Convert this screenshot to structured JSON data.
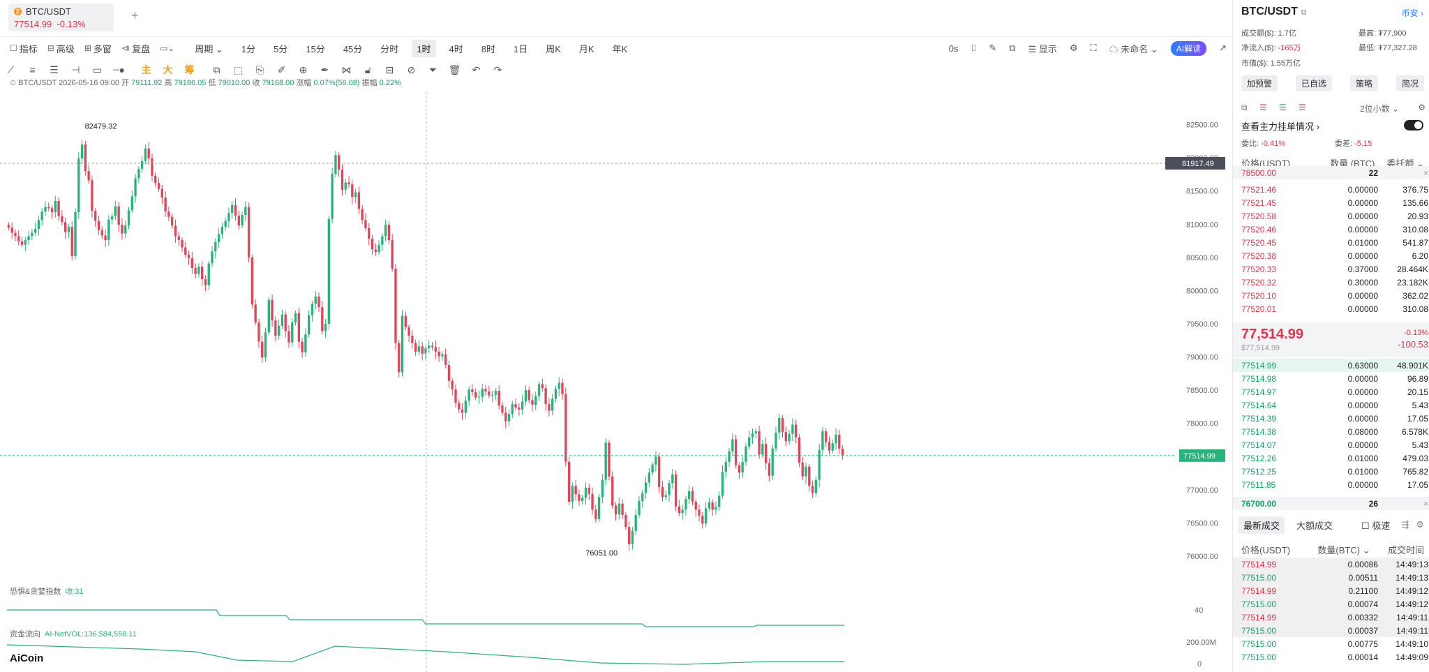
{
  "tab": {
    "symbol": "BTC/USDT",
    "price": "77514.99",
    "change": "-0.13%",
    "add": "+"
  },
  "toolbar": {
    "left": [
      {
        "icon": "indicator-icon",
        "label": "指标"
      },
      {
        "icon": "advanced-icon",
        "label": "高级"
      },
      {
        "icon": "multiwin-icon",
        "label": "多窗"
      },
      {
        "icon": "replay-icon",
        "label": "复盘"
      },
      {
        "icon": "layout-icon",
        "label": ""
      }
    ],
    "period_label": "周期",
    "periods": [
      "1分",
      "5分",
      "15分",
      "45分",
      "分时",
      "1时",
      "4时",
      "8时",
      "1日",
      "周K",
      "月K",
      "年K"
    ],
    "active_period": "1时",
    "right": {
      "countdown": "0s",
      "display": "显示",
      "unnamed": "未命名",
      "ai": "AI解读"
    }
  },
  "drawtools": [
    "line-tool-icon",
    "hline-tool-icon",
    "channel-tool-icon",
    "ray-tool-icon",
    "rect-tool-icon",
    "dots-tool-icon",
    "主",
    "大",
    "筹",
    "copy-icon",
    "measure-icon",
    "copy2-icon",
    "ruler-icon",
    "zoom-icon",
    "brush-icon",
    "magnet-icon",
    "lock-icon",
    "save-icon",
    "link-icon",
    "filter-icon",
    "trash-icon",
    "undo-icon",
    "redo-icon"
  ],
  "legend": {
    "pair": "BTC/USDT",
    "time": "2026-05-16 09:00",
    "open_l": "开",
    "open": "79111.92",
    "high_l": "高",
    "high": "79186.05",
    "low_l": "低",
    "low": "79010.00",
    "close_l": "收",
    "close": "79168.00",
    "chg_l": "涨幅",
    "chg": "0.07%(56.08)",
    "amp_l": "振幅",
    "amp": "0.22%"
  },
  "chart_data": {
    "type": "candlestick",
    "ylim": [
      75800,
      82800
    ],
    "yticks": [
      "82500.00",
      "82000.00",
      "81500.00",
      "81000.00",
      "80500.00",
      "80000.00",
      "79500.00",
      "79000.00",
      "78500.00",
      "78000.00",
      "77500.00",
      "77000.00",
      "76500.00",
      "76000.00"
    ],
    "high_marker": "82479.32",
    "low_marker": "76051.00",
    "crosshair_price": "81917.49",
    "last_price": "77514.99",
    "colors": {
      "up": "#26b47a",
      "down": "#e2455a"
    },
    "closes": [
      80950,
      80870,
      80820,
      80740,
      80690,
      80760,
      80820,
      80870,
      80930,
      81060,
      81190,
      81260,
      81240,
      81180,
      81350,
      81120,
      81030,
      80880,
      80960,
      80520,
      81180,
      81990,
      82200,
      81800,
      81660,
      81200,
      81050,
      80910,
      80830,
      80760,
      81070,
      81120,
      81270,
      80990,
      80860,
      80980,
      81210,
      81420,
      81690,
      81830,
      81950,
      82140,
      81990,
      81730,
      81620,
      81530,
      81400,
      81190,
      81110,
      80980,
      80820,
      80760,
      80650,
      80540,
      80490,
      80340,
      80250,
      80360,
      80170,
      80080,
      80410,
      80590,
      80730,
      80850,
      80960,
      81050,
      81170,
      81290,
      81130,
      80980,
      81140,
      81260,
      80500,
      79790,
      79520,
      79230,
      78990,
      79370,
      79860,
      79550,
      79320,
      79470,
      79640,
      79390,
      79220,
      79520,
      79660,
      79230,
      79070,
      79340,
      79630,
      79800,
      79910,
      79750,
      79390,
      79500,
      81080,
      81760,
      82040,
      81820,
      81520,
      81630,
      81600,
      81410,
      81480,
      81230,
      81060,
      80940,
      80780,
      80620,
      80580,
      80690,
      80820,
      80990,
      80760,
      80330,
      79210,
      78770,
      79620,
      79450,
      79320,
      79210,
      79080,
      79160,
      79050,
      79130,
      79170,
      79150,
      79080,
      79010,
      79040,
      78880,
      78640,
      78510,
      78310,
      78210,
      78160,
      78340,
      78510,
      78470,
      78390,
      78400,
      78520,
      78480,
      78420,
      78430,
      78490,
      78270,
      78160,
      78030,
      78140,
      78290,
      78240,
      78210,
      78330,
      78500,
      78350,
      78280,
      78410,
      78590,
      78530,
      78290,
      78190,
      78370,
      78520,
      78610,
      78440,
      77420,
      76820,
      77060,
      76930,
      76830,
      76880,
      77030,
      76940,
      76700,
      76560,
      76890,
      77150,
      77710,
      77200,
      76760,
      76630,
      76790,
      76620,
      76440,
      76180,
      76380,
      76620,
      76830,
      76950,
      77110,
      77260,
      77380,
      77500,
      77040,
      76890,
      76920,
      77100,
      77230,
      76750,
      76650,
      76700,
      76860,
      76980,
      76820,
      76700,
      76610,
      76490,
      76720,
      76810,
      76700,
      76740,
      76910,
      77270,
      77420,
      77580,
      77760,
      77370,
      77260,
      77420,
      77650,
      77790,
      77850,
      77880,
      77530,
      77690,
      77400,
      77210,
      77620,
      77860,
      78080,
      77870,
      77730,
      77840,
      77980,
      77790,
      77410,
      77200,
      77350,
      77060,
      76950,
      77150,
      77600,
      77880,
      77720,
      77590,
      77700,
      77830,
      77620,
      77510
    ]
  },
  "fear_greed": {
    "label": "恐惧&贪婪指数",
    "value_label": "收:31",
    "tick": "40"
  },
  "fund_flow": {
    "label": "资金流向",
    "value_label": "AI-NetVOL:136,584,558.11",
    "ticks": [
      "200.00M",
      "0"
    ]
  },
  "logo": "AiCoin",
  "panel": {
    "title": "BTC/USDT",
    "exchange": "币安",
    "stats": [
      {
        "k": "成交额($):",
        "v": "1.7亿"
      },
      {
        "k": "最高:",
        "v": "₮77,900"
      },
      {
        "k": "净流入($):",
        "v": "-165万"
      },
      {
        "k": "最低:",
        "v": "₮77,327.28"
      },
      {
        "k": "市值($):",
        "v": "1.55万亿"
      }
    ],
    "buttons": [
      "加预警",
      "已自选",
      "策略",
      "简况"
    ],
    "decimals": "2位小数",
    "main_order": "查看主力挂单情况",
    "ratio_l": "委比:",
    "ratio": "-0.41%",
    "diff_l": "委差:",
    "diff": "-5.15",
    "headers": [
      "价格(USDT)",
      "数量 (BTC)",
      "委托额"
    ],
    "ask_big": {
      "p": "78500.00",
      "q": "22"
    },
    "asks": [
      [
        "77521.46",
        "0.00000",
        "376.75"
      ],
      [
        "77521.45",
        "0.00000",
        "135.66"
      ],
      [
        "77520.58",
        "0.00000",
        "20.93"
      ],
      [
        "77520.46",
        "0.00000",
        "310.08"
      ],
      [
        "77520.45",
        "0.01000",
        "541.87"
      ],
      [
        "77520.38",
        "0.00000",
        "6.20"
      ],
      [
        "77520.33",
        "0.37000",
        "28.464K"
      ],
      [
        "77520.32",
        "0.30000",
        "23.182K"
      ],
      [
        "77520.10",
        "0.00000",
        "362.02"
      ],
      [
        "77520.01",
        "0.00000",
        "310.08"
      ]
    ],
    "last": "77,514.99",
    "last_usd": "$77,514.99",
    "last_pct": "-0.13%",
    "last_diff": "-100.53",
    "bids": [
      [
        "77514.99",
        "0.63000",
        "48.901K"
      ],
      [
        "77514.98",
        "0.00000",
        "96.89"
      ],
      [
        "77514.97",
        "0.00000",
        "20.15"
      ],
      [
        "77514.64",
        "0.00000",
        "5.43"
      ],
      [
        "77514.39",
        "0.00000",
        "17.05"
      ],
      [
        "77514.38",
        "0.08000",
        "6.578K"
      ],
      [
        "77514.07",
        "0.00000",
        "5.43"
      ],
      [
        "77512.26",
        "0.01000",
        "479.03"
      ],
      [
        "77512.25",
        "0.01000",
        "765.82"
      ],
      [
        "77511.85",
        "0.00000",
        "17.05"
      ]
    ],
    "bid_big": {
      "p": "76700.00",
      "q": "26"
    },
    "trade_tabs": [
      "最新成交",
      "大额成交"
    ],
    "fast": "极速",
    "trade_headers": [
      "价格(USDT)",
      "数量(BTC)",
      "成交时间"
    ],
    "trades": [
      [
        "77514.99",
        "0.00086",
        "14:49:13",
        "s"
      ],
      [
        "77515.00",
        "0.00511",
        "14:49:13",
        "b"
      ],
      [
        "77514.99",
        "0.21100",
        "14:49:12",
        "s"
      ],
      [
        "77515.00",
        "0.00074",
        "14:49:12",
        "b"
      ],
      [
        "77514.99",
        "0.00332",
        "14:49:11",
        "s"
      ],
      [
        "77515.00",
        "0.00037",
        "14:49:11",
        "b"
      ],
      [
        "77515.00",
        "0.00775",
        "14:49:10",
        "b"
      ],
      [
        "77515.00",
        "0.00014",
        "14:49:09",
        "b"
      ]
    ]
  }
}
